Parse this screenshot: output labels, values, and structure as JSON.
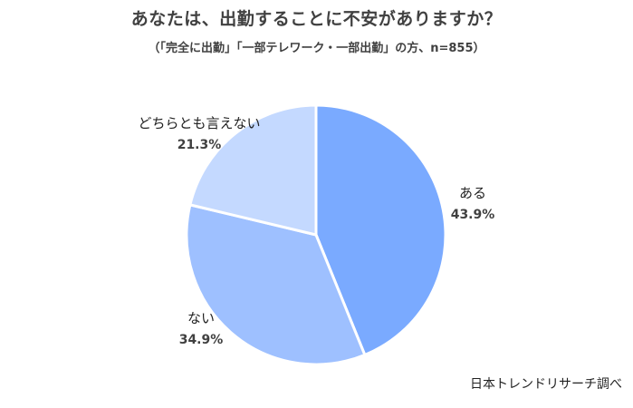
{
  "chart_data": {
    "type": "pie",
    "title": "あなたは、出勤することに不安がありますか？",
    "subtitle": "（「完全に出勤」「一部テレワーク・一部出勤」の方、n=855）",
    "source": "日本トレンドリサーチ調べ",
    "categories": [
      "ある",
      "ない",
      "どちらとも言えない"
    ],
    "values": [
      43.9,
      34.9,
      21.3
    ],
    "value_labels": [
      "43.9%",
      "34.9%",
      "21.3%"
    ],
    "colors": [
      "#7aaaff",
      "#9ec0ff",
      "#c4d9ff"
    ],
    "start_angle": "12 o'clock",
    "direction": "clockwise",
    "legend": "none"
  }
}
